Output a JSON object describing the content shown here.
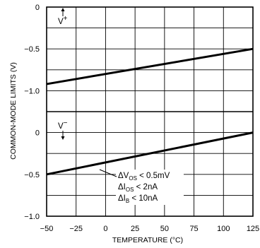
{
  "chart_data": {
    "type": "line",
    "title": "",
    "xlabel": "TEMPERATURE (°C)",
    "ylabel": "COMMON-MODE LIMITS (V)",
    "xlim": [
      -50,
      125
    ],
    "x_ticks": [
      "−50",
      "−25",
      "0",
      "25",
      "50",
      "75",
      "100",
      "125"
    ],
    "x_tick_values": [
      -50,
      -25,
      0,
      25,
      50,
      75,
      100,
      125
    ],
    "grid": true,
    "panels": [
      {
        "id": "v-plus",
        "label": "V",
        "label_sign": "+",
        "ylim": [
          -1.25,
          0
        ],
        "y_ticks": [
          "0",
          "−0.5",
          "−1.0"
        ],
        "y_tick_values": [
          0,
          -0.5,
          -1.0
        ],
        "series": [
          {
            "x": [
              -50,
              125
            ],
            "y": [
              -0.92,
              -0.5
            ]
          }
        ]
      },
      {
        "id": "v-minus",
        "label": "V",
        "label_sign": "−",
        "ylim": [
          -1.0,
          0.25
        ],
        "y_ticks": [
          "0",
          "−0.5",
          "−1.0"
        ],
        "y_tick_values": [
          0,
          -0.5,
          -1.0
        ],
        "series": [
          {
            "x": [
              -50,
              125
            ],
            "y": [
              -0.5,
              0
            ]
          }
        ]
      }
    ],
    "annotations": [
      {
        "prefix": "ΔV",
        "sub": "OS",
        "rest": " < 0.5mV"
      },
      {
        "prefix": "ΔI",
        "sub": "OS",
        "rest": " < 2nA"
      },
      {
        "prefix": "ΔI",
        "sub": "B",
        "rest": " < 10nA"
      }
    ]
  }
}
